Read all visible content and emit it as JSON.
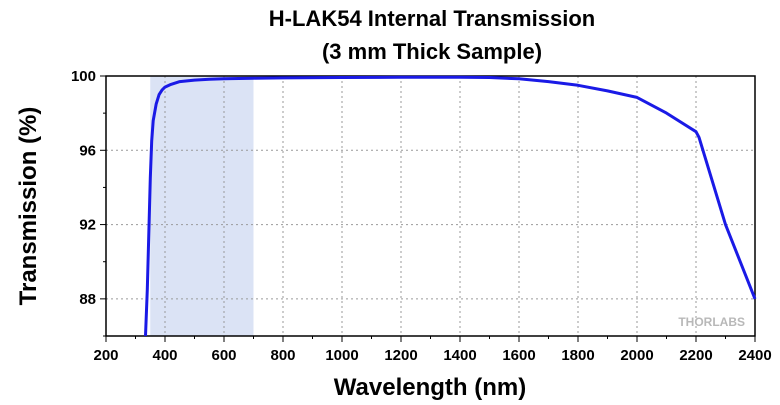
{
  "chart_data": {
    "type": "line",
    "title": "H-LAK54 Internal Transmission",
    "subtitle": "(3 mm Thick Sample)",
    "xlabel": "Wavelength (nm)",
    "ylabel": "Transmission (%)",
    "xlim": [
      200,
      2400
    ],
    "ylim": [
      86,
      100
    ],
    "x_ticks": [
      200,
      400,
      600,
      800,
      1000,
      1200,
      1400,
      1600,
      1800,
      2000,
      2200,
      2400
    ],
    "y_ticks": [
      88,
      92,
      96,
      100
    ],
    "grid": true,
    "highlight_band": [
      350,
      700
    ],
    "line_color": "#1a1ae6",
    "band_color": "#dbe3f5",
    "series": [
      {
        "x": [
          334,
          340,
          345,
          350,
          355,
          360,
          370,
          380,
          390,
          400,
          420,
          450,
          500,
          550,
          600,
          700,
          800,
          1000,
          1200,
          1400,
          1500,
          1600,
          1700,
          1800,
          1900,
          2000,
          2100,
          2200,
          2210,
          2300,
          2400
        ],
        "y": [
          86.0,
          88.5,
          91.5,
          94.5,
          96.5,
          97.6,
          98.5,
          99.0,
          99.25,
          99.4,
          99.55,
          99.7,
          99.78,
          99.82,
          99.85,
          99.88,
          99.9,
          99.92,
          99.93,
          99.93,
          99.92,
          99.85,
          99.7,
          99.5,
          99.2,
          98.85,
          98.0,
          97.0,
          96.7,
          92.0,
          88.0
        ]
      }
    ],
    "watermark": "THORLABS"
  }
}
